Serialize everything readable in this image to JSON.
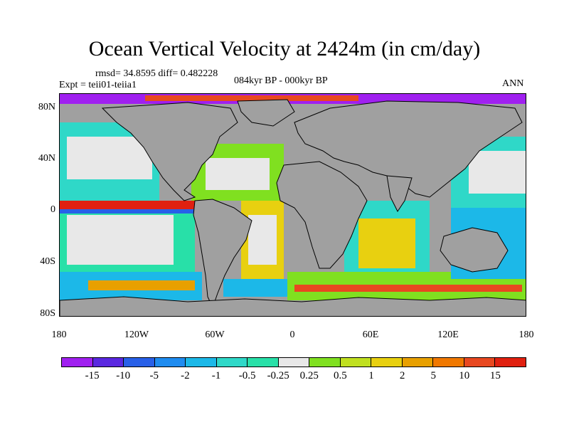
{
  "title": "Ocean Vertical Velocity at 2424m (in cm/day)",
  "stats": "rmsd= 34.8595 diff= 0.482228",
  "experiment": "Expt = teii01-teiia1",
  "period": "084kyr BP - 000kyr BP",
  "season": "ANN",
  "lat_labels": [
    "80N",
    "40N",
    "0",
    "40S",
    "80S"
  ],
  "lon_labels": [
    "180",
    "120W",
    "60W",
    "0",
    "60E",
    "120E",
    "180"
  ],
  "colorbar": {
    "labels": [
      "-15",
      "-10",
      "-5",
      "-2",
      "-1",
      "-0.5",
      "-0.25",
      "0.25",
      "0.5",
      "1",
      "2",
      "5",
      "10",
      "15"
    ],
    "colors": [
      "#a020f0",
      "#5a28e0",
      "#2860e8",
      "#1f8cf0",
      "#1cb8e8",
      "#2fd8c8",
      "#28e0a8",
      "#e8e8e8",
      "#80e020",
      "#c0e020",
      "#e8d010",
      "#e8a000",
      "#f07800",
      "#e84820",
      "#e02010"
    ]
  },
  "map": {
    "land_color": "#a0a0a0",
    "coastline_color": "#000000"
  }
}
